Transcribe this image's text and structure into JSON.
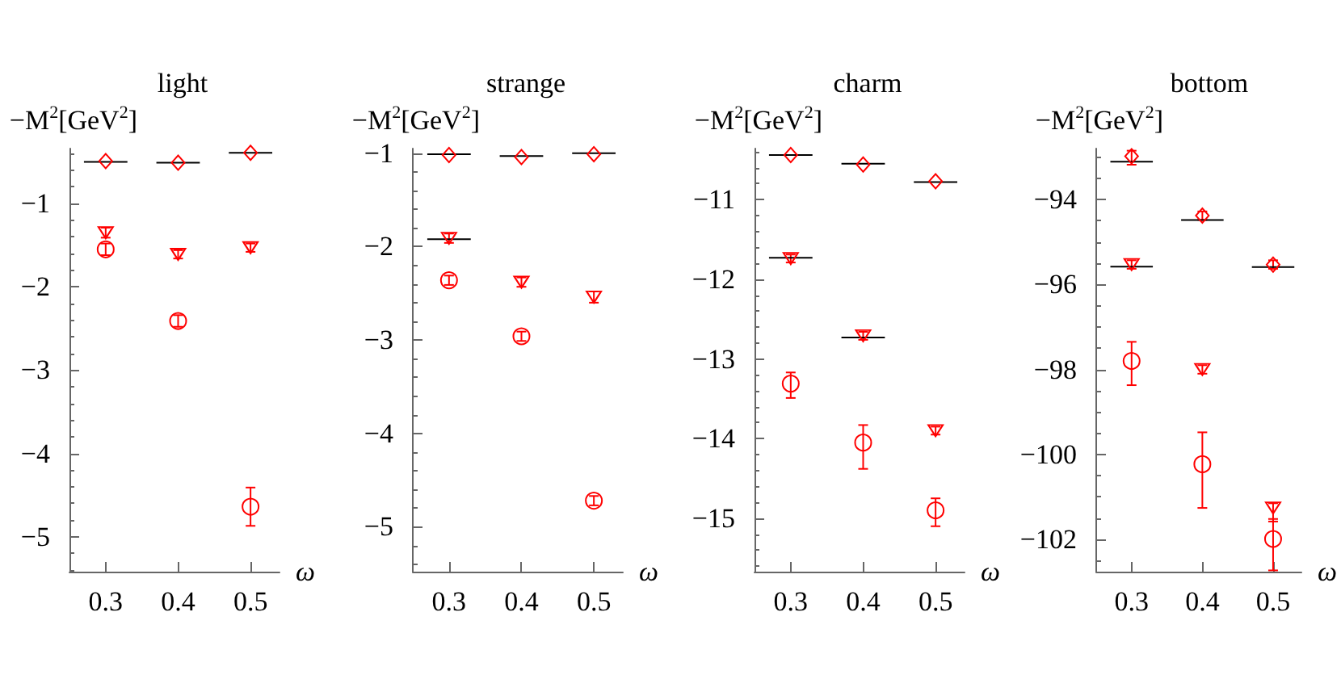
{
  "chart_data": [
    {
      "type": "scatter",
      "title": "light",
      "ylabel": "−M$^{2}$[GeV$^{2}$]",
      "xlabel": "ω",
      "x": [
        0.3,
        0.4,
        0.5
      ],
      "xlim": [
        0.25,
        0.54
      ],
      "xticks": [
        0.3,
        0.4,
        0.5
      ],
      "ylim": [
        -5.42,
        -0.34
      ],
      "yticks": [
        {
          "value": -0.4,
          "label": null
        },
        {
          "value": -0.6,
          "label": null
        },
        {
          "value": -0.8,
          "label": null
        },
        -1,
        {
          "value": -1.2,
          "label": null
        },
        {
          "value": -1.4,
          "label": null
        },
        {
          "value": -1.6,
          "label": null
        },
        {
          "value": -1.8,
          "label": null
        },
        -2,
        {
          "value": -2.2,
          "label": null
        },
        {
          "value": -2.4,
          "label": null
        },
        {
          "value": -2.6,
          "label": null
        },
        {
          "value": -2.8,
          "label": null
        },
        -3,
        {
          "value": -3.2,
          "label": null
        },
        {
          "value": -3.4,
          "label": null
        },
        {
          "value": -3.6,
          "label": null
        },
        {
          "value": -3.8,
          "label": null
        },
        -4,
        {
          "value": -4.2,
          "label": null
        },
        {
          "value": -4.4,
          "label": null
        },
        {
          "value": -4.6,
          "label": null
        },
        {
          "value": -4.8,
          "label": null
        },
        -5,
        {
          "value": -5.2,
          "label": null
        },
        {
          "value": -5.4,
          "label": null
        }
      ],
      "series": [
        {
          "color": "#ff0000",
          "marker": "diamond",
          "values": [
            -0.49,
            -0.51,
            -0.39
          ]
        },
        {
          "color": "#ff0000",
          "marker": "triangle",
          "values": [
            -1.35,
            -1.61,
            -1.53
          ],
          "errors": [
            0.06,
            0.05,
            0.05
          ]
        },
        {
          "color": "#ff0000",
          "marker": "circle",
          "values": [
            -1.55,
            -2.41,
            -4.64
          ],
          "errors": [
            0.07,
            0.07,
            0.23
          ]
        },
        {
          "type": "line",
          "color": "#000000",
          "x": [
            0.27,
            0.33,
            0.35,
            0.37,
            0.43,
            0.45,
            0.47,
            0.53
          ],
          "values": [
            -0.5,
            -0.5,
            null,
            -0.51,
            -0.51,
            null,
            -0.39,
            -0.39
          ]
        }
      ]
    },
    {
      "type": "scatter",
      "title": "strange",
      "ylabel": "−M$^{2}$[GeV$^{2}$]",
      "xlabel": "ω",
      "x": [
        0.3,
        0.4,
        0.5
      ],
      "xlim": [
        0.25,
        0.54
      ],
      "xticks": [
        0.3,
        0.4,
        0.5
      ],
      "ylim": [
        -5.48,
        -0.95
      ],
      "yticks": [
        -1,
        {
          "value": -1.2,
          "label": null
        },
        {
          "value": -1.4,
          "label": null
        },
        {
          "value": -1.6,
          "label": null
        },
        {
          "value": -1.8,
          "label": null
        },
        -2,
        {
          "value": -2.2,
          "label": null
        },
        {
          "value": -2.4,
          "label": null
        },
        {
          "value": -2.6,
          "label": null
        },
        {
          "value": -2.8,
          "label": null
        },
        -3,
        {
          "value": -3.2,
          "label": null
        },
        {
          "value": -3.4,
          "label": null
        },
        {
          "value": -3.6,
          "label": null
        },
        {
          "value": -3.8,
          "label": null
        },
        -4,
        {
          "value": -4.2,
          "label": null
        },
        {
          "value": -4.4,
          "label": null
        },
        {
          "value": -4.6,
          "label": null
        },
        {
          "value": -4.8,
          "label": null
        },
        -5,
        {
          "value": -5.2,
          "label": null
        },
        {
          "value": -5.4,
          "label": null
        }
      ],
      "series": [
        {
          "color": "#ff0000",
          "marker": "diamond",
          "values": [
            -1.02,
            -1.04,
            -1.01
          ]
        },
        {
          "color": "#ff0000",
          "marker": "triangle",
          "values": [
            -1.91,
            -2.38,
            -2.54
          ],
          "errors": [
            0.05,
            0.05,
            0.06
          ]
        },
        {
          "color": "#ff0000",
          "marker": "circle",
          "values": [
            -2.36,
            -2.96,
            -4.72
          ],
          "errors": [
            0.05,
            0.05,
            0.05
          ]
        },
        {
          "type": "line",
          "color": "#000000",
          "x": [
            0.27,
            0.33,
            0.35,
            0.37,
            0.43,
            0.45,
            0.47,
            0.53
          ],
          "values": [
            -1.01,
            -1.01,
            null,
            -1.03,
            -1.03,
            null,
            -1.0,
            -1.0
          ]
        },
        {
          "type": "line",
          "color": "#000000",
          "x": [
            0.27,
            0.33
          ],
          "values": [
            -1.92,
            -1.92
          ]
        }
      ]
    },
    {
      "type": "scatter",
      "title": "charm",
      "ylabel": "−M$^{2}$[GeV$^{2}$]",
      "xlabel": "ω",
      "x": [
        0.3,
        0.4,
        0.5
      ],
      "xlim": [
        0.25,
        0.54
      ],
      "xticks": [
        0.3,
        0.4,
        0.5
      ],
      "ylim": [
        -15.67,
        -10.36
      ],
      "yticks": [
        {
          "value": -10.4,
          "label": null
        },
        {
          "value": -10.6,
          "label": null
        },
        {
          "value": -10.8,
          "label": null
        },
        -11,
        {
          "value": -11.2,
          "label": null
        },
        {
          "value": -11.4,
          "label": null
        },
        {
          "value": -11.6,
          "label": null
        },
        {
          "value": -11.8,
          "label": null
        },
        -12,
        {
          "value": -12.2,
          "label": null
        },
        {
          "value": -12.4,
          "label": null
        },
        {
          "value": -12.6,
          "label": null
        },
        {
          "value": -12.8,
          "label": null
        },
        -13,
        {
          "value": -13.2,
          "label": null
        },
        {
          "value": -13.4,
          "label": null
        },
        {
          "value": -13.6,
          "label": null
        },
        {
          "value": -13.8,
          "label": null
        },
        -14,
        {
          "value": -14.2,
          "label": null
        },
        {
          "value": -14.4,
          "label": null
        },
        {
          "value": -14.6,
          "label": null
        },
        {
          "value": -14.8,
          "label": null
        },
        -15,
        {
          "value": -15.2,
          "label": null
        },
        {
          "value": -15.4,
          "label": null
        },
        {
          "value": -15.6,
          "label": null
        }
      ],
      "series": [
        {
          "color": "#ff0000",
          "marker": "diamond",
          "values": [
            -10.44,
            -10.56,
            -10.77
          ]
        },
        {
          "color": "#ff0000",
          "marker": "triangle",
          "values": [
            -11.74,
            -12.71,
            -13.9
          ],
          "errors": [
            0.05,
            0.05,
            0.05
          ]
        },
        {
          "color": "#ff0000",
          "marker": "circle",
          "values": [
            -13.31,
            -14.05,
            -14.9
          ],
          "errors": [
            [
              -13.49,
              -13.17
            ],
            [
              -14.38,
              -13.83
            ],
            [
              -15.1,
              -14.75
            ]
          ]
        },
        {
          "type": "line",
          "color": "#000000",
          "x": [
            0.27,
            0.33,
            0.35,
            0.37,
            0.43,
            0.45,
            0.47,
            0.53
          ],
          "values": [
            -10.44,
            -10.44,
            null,
            -10.55,
            -10.55,
            null,
            -10.78,
            -10.78
          ]
        },
        {
          "type": "line",
          "color": "#000000",
          "x": [
            0.27,
            0.33,
            0.35,
            0.37,
            0.43
          ],
          "values": [
            -11.73,
            -11.73,
            null,
            -12.73,
            -12.73
          ]
        }
      ]
    },
    {
      "type": "scatter",
      "title": "bottom",
      "ylabel": "−M$^{2}$[GeV$^{2}$]",
      "xlabel": "ω",
      "x": [
        0.3,
        0.4,
        0.5
      ],
      "xlim": [
        0.25,
        0.54
      ],
      "xticks": [
        0.3,
        0.4,
        0.5
      ],
      "ylim": [
        -102.76,
        -92.8
      ],
      "yticks": [
        {
          "value": -93,
          "label": null
        },
        {
          "value": -93.5,
          "label": null
        },
        -94,
        {
          "value": -94.5,
          "label": null
        },
        {
          "value": -95,
          "label": null
        },
        {
          "value": -95.5,
          "label": null
        },
        -96,
        {
          "value": -96.5,
          "label": null
        },
        {
          "value": -97,
          "label": null
        },
        {
          "value": -97.5,
          "label": null
        },
        -98,
        {
          "value": -98.5,
          "label": null
        },
        {
          "value": -99,
          "label": null
        },
        {
          "value": -99.5,
          "label": null
        },
        -100,
        {
          "value": -100.5,
          "label": null
        },
        {
          "value": -101,
          "label": null
        },
        {
          "value": -101.5,
          "label": null
        },
        -102,
        {
          "value": -102.5,
          "label": null
        }
      ],
      "series": [
        {
          "color": "#ff0000",
          "marker": "diamond",
          "values": [
            -92.98,
            -94.38,
            -95.53
          ],
          "errors": [
            [
              -93.18,
              -92.85
            ],
            0.1,
            0.1
          ]
        },
        {
          "color": "#ff0000",
          "marker": "triangle",
          "values": [
            -95.53,
            -98.0,
            -101.26
          ],
          "errors": [
            0.1,
            0.1,
            [
              -101.58,
              -101.15
            ]
          ]
        },
        {
          "color": "#ff0000",
          "marker": "circle",
          "values": [
            -97.8,
            -100.23,
            -101.99
          ],
          "errors": [
            [
              -98.37,
              -97.35
            ],
            [
              -101.26,
              -99.48
            ],
            [
              -102.73,
              -101.52
            ]
          ]
        },
        {
          "type": "line",
          "color": "#000000",
          "x": [
            0.27,
            0.33,
            0.35,
            0.37,
            0.43,
            0.45,
            0.47,
            0.53
          ],
          "values": [
            -93.11,
            -93.11,
            null,
            -94.48,
            -94.48,
            null,
            -95.59,
            -95.59
          ]
        },
        {
          "type": "line",
          "color": "#000000",
          "x": [
            0.27,
            0.33
          ],
          "values": [
            -95.58,
            -95.58
          ]
        }
      ]
    }
  ]
}
